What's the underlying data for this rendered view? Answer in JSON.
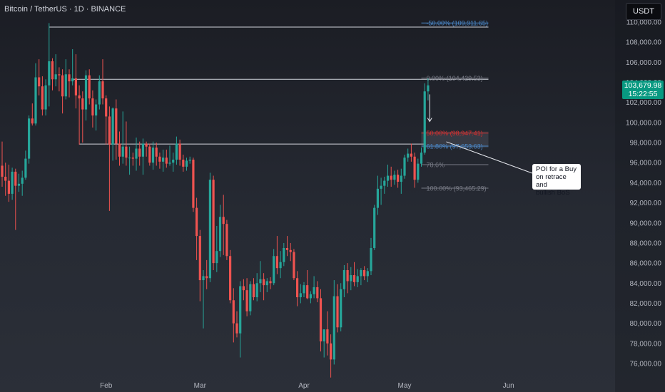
{
  "header": {
    "symbol": "Bitcoin / TetherUS · 1D · BINANCE",
    "currency": "USDT"
  },
  "last_price": {
    "value": "103,679.98",
    "countdown": "15:22:55"
  },
  "annotation": {
    "lines": [
      "POI for a Buy",
      "on retrace and",
      "bullish BoS"
    ]
  },
  "colors": {
    "bull": "#26a69a",
    "bear": "#ef5350",
    "fib_blue": "#4a87c8",
    "fib_red": "#d32f2f",
    "fib_grey": "#787b86",
    "level_line": "#d1d4dc",
    "price_tag_bg": "#089981"
  },
  "chart_data": {
    "type": "candlestick",
    "title": "Bitcoin / TetherUS · 1D · BINANCE",
    "y_axis": {
      "side": "right",
      "range": [
        74800,
        111300
      ],
      "ticks": [
        {
          "value": 110000,
          "label": "110,000.00"
        },
        {
          "value": 108000,
          "label": "108,000.00"
        },
        {
          "value": 106000,
          "label": "106,000.00"
        },
        {
          "value": 104000,
          "label": "104,000.00"
        },
        {
          "value": 102000,
          "label": "102,000.00"
        },
        {
          "value": 100000,
          "label": "100,000.00"
        },
        {
          "value": 98000,
          "label": "98,000.00"
        },
        {
          "value": 96000,
          "label": "96,000.00"
        },
        {
          "value": 94000,
          "label": "94,000.00"
        },
        {
          "value": 92000,
          "label": "92,000.00"
        },
        {
          "value": 90000,
          "label": "90,000.00"
        },
        {
          "value": 88000,
          "label": "88,000.00"
        },
        {
          "value": 86000,
          "label": "86,000.00"
        },
        {
          "value": 84000,
          "label": "84,000.00"
        },
        {
          "value": 82000,
          "label": "82,000.00"
        },
        {
          "value": 80000,
          "label": "80,000.00"
        },
        {
          "value": 78000,
          "label": "78,000.00"
        },
        {
          "value": 76000,
          "label": "76,000.00"
        }
      ]
    },
    "x_axis": {
      "labels": [
        {
          "label": "Feb",
          "day": 31
        },
        {
          "label": "Mar",
          "day": 59
        },
        {
          "label": "Apr",
          "day": 90
        },
        {
          "label": "May",
          "day": 120
        },
        {
          "label": "Jun",
          "day": 151
        }
      ]
    },
    "candles": [
      {
        "day": 0,
        "o": 95700,
        "h": 98100,
        "l": 93600,
        "c": 94600
      },
      {
        "day": 1,
        "o": 94600,
        "h": 96000,
        "l": 92700,
        "c": 94200
      },
      {
        "day": 2,
        "o": 94200,
        "h": 95800,
        "l": 92100,
        "c": 92900
      },
      {
        "day": 3,
        "o": 92900,
        "h": 95500,
        "l": 92300,
        "c": 95100
      },
      {
        "day": 4,
        "o": 95100,
        "h": 95400,
        "l": 89300,
        "c": 93700
      },
      {
        "day": 5,
        "o": 93700,
        "h": 94900,
        "l": 93100,
        "c": 93900
      },
      {
        "day": 6,
        "o": 93900,
        "h": 95200,
        "l": 92700,
        "c": 94500
      },
      {
        "day": 7,
        "o": 94500,
        "h": 97200,
        "l": 94300,
        "c": 96400
      },
      {
        "day": 8,
        "o": 96400,
        "h": 100700,
        "l": 95900,
        "c": 100400
      },
      {
        "day": 9,
        "o": 100400,
        "h": 101900,
        "l": 99700,
        "c": 99900
      },
      {
        "day": 10,
        "o": 99900,
        "h": 105900,
        "l": 99700,
        "c": 104500
      },
      {
        "day": 11,
        "o": 104500,
        "h": 106300,
        "l": 102700,
        "c": 103600
      },
      {
        "day": 12,
        "o": 103600,
        "h": 104600,
        "l": 100700,
        "c": 101300
      },
      {
        "day": 13,
        "o": 101300,
        "h": 104300,
        "l": 100700,
        "c": 103700
      },
      {
        "day": 14,
        "o": 103700,
        "h": 109900,
        "l": 101600,
        "c": 106100
      },
      {
        "day": 15,
        "o": 106100,
        "h": 106400,
        "l": 103200,
        "c": 104300
      },
      {
        "day": 16,
        "o": 104300,
        "h": 106800,
        "l": 103600,
        "c": 104800
      },
      {
        "day": 17,
        "o": 104800,
        "h": 105500,
        "l": 103100,
        "c": 104700
      },
      {
        "day": 18,
        "o": 104700,
        "h": 105300,
        "l": 100900,
        "c": 102600
      },
      {
        "day": 19,
        "o": 102600,
        "h": 106300,
        "l": 102300,
        "c": 104800
      },
      {
        "day": 20,
        "o": 104800,
        "h": 105300,
        "l": 102500,
        "c": 104100
      },
      {
        "day": 21,
        "o": 104100,
        "h": 107300,
        "l": 103700,
        "c": 104400
      },
      {
        "day": 22,
        "o": 104400,
        "h": 106800,
        "l": 101400,
        "c": 102700
      },
      {
        "day": 23,
        "o": 102700,
        "h": 103700,
        "l": 97800,
        "c": 102400
      },
      {
        "day": 24,
        "o": 102400,
        "h": 103100,
        "l": 98000,
        "c": 101300
      },
      {
        "day": 25,
        "o": 101300,
        "h": 105200,
        "l": 100200,
        "c": 104700
      },
      {
        "day": 26,
        "o": 104700,
        "h": 105300,
        "l": 101800,
        "c": 102400
      },
      {
        "day": 27,
        "o": 102400,
        "h": 103200,
        "l": 99500,
        "c": 100700
      },
      {
        "day": 28,
        "o": 100700,
        "h": 102300,
        "l": 99200,
        "c": 101800
      },
      {
        "day": 29,
        "o": 101800,
        "h": 104700,
        "l": 101300,
        "c": 104100
      },
      {
        "day": 30,
        "o": 104100,
        "h": 106300,
        "l": 101800,
        "c": 102400
      },
      {
        "day": 31,
        "o": 102400,
        "h": 102700,
        "l": 97800,
        "c": 100600
      },
      {
        "day": 32,
        "o": 100600,
        "h": 101600,
        "l": 91200,
        "c": 97800
      },
      {
        "day": 33,
        "o": 97800,
        "h": 101500,
        "l": 96200,
        "c": 101400
      },
      {
        "day": 34,
        "o": 101400,
        "h": 102300,
        "l": 96300,
        "c": 97900
      },
      {
        "day": 35,
        "o": 97900,
        "h": 99100,
        "l": 95700,
        "c": 96600
      },
      {
        "day": 36,
        "o": 96600,
        "h": 101100,
        "l": 95900,
        "c": 97600
      },
      {
        "day": 37,
        "o": 97600,
        "h": 100100,
        "l": 95700,
        "c": 96500
      },
      {
        "day": 38,
        "o": 96500,
        "h": 97600,
        "l": 94800,
        "c": 96500
      },
      {
        "day": 39,
        "o": 96500,
        "h": 97000,
        "l": 95700,
        "c": 96400
      },
      {
        "day": 40,
        "o": 96400,
        "h": 98500,
        "l": 95200,
        "c": 97400
      },
      {
        "day": 41,
        "o": 97400,
        "h": 98100,
        "l": 95700,
        "c": 96600
      },
      {
        "day": 42,
        "o": 96600,
        "h": 98400,
        "l": 94800,
        "c": 97900
      },
      {
        "day": 43,
        "o": 97900,
        "h": 98100,
        "l": 96600,
        "c": 97600
      },
      {
        "day": 44,
        "o": 97600,
        "h": 97900,
        "l": 95700,
        "c": 96000
      },
      {
        "day": 45,
        "o": 96000,
        "h": 98100,
        "l": 95300,
        "c": 97500
      },
      {
        "day": 46,
        "o": 97500,
        "h": 98000,
        "l": 95700,
        "c": 96600
      },
      {
        "day": 47,
        "o": 96600,
        "h": 97000,
        "l": 95400,
        "c": 96100
      },
      {
        "day": 48,
        "o": 96100,
        "h": 97300,
        "l": 95100,
        "c": 96500
      },
      {
        "day": 49,
        "o": 96500,
        "h": 97300,
        "l": 95500,
        "c": 95900
      },
      {
        "day": 50,
        "o": 95900,
        "h": 97700,
        "l": 95700,
        "c": 96000
      },
      {
        "day": 51,
        "o": 96000,
        "h": 97000,
        "l": 95100,
        "c": 96300
      },
      {
        "day": 52,
        "o": 96300,
        "h": 98600,
        "l": 95800,
        "c": 97900
      },
      {
        "day": 53,
        "o": 97900,
        "h": 98300,
        "l": 95700,
        "c": 96300
      },
      {
        "day": 54,
        "o": 96300,
        "h": 96800,
        "l": 95100,
        "c": 95600
      },
      {
        "day": 55,
        "o": 95600,
        "h": 96500,
        "l": 95200,
        "c": 96200
      },
      {
        "day": 56,
        "o": 96200,
        "h": 96600,
        "l": 95900,
        "c": 96300
      },
      {
        "day": 57,
        "o": 96300,
        "h": 96500,
        "l": 91100,
        "c": 91500
      },
      {
        "day": 58,
        "o": 91500,
        "h": 92500,
        "l": 86300,
        "c": 88700
      },
      {
        "day": 59,
        "o": 88700,
        "h": 89300,
        "l": 82200,
        "c": 84300
      },
      {
        "day": 60,
        "o": 84300,
        "h": 85300,
        "l": 79500,
        "c": 84700
      },
      {
        "day": 61,
        "o": 84700,
        "h": 86300,
        "l": 83400,
        "c": 84500
      },
      {
        "day": 62,
        "o": 84500,
        "h": 95000,
        "l": 84100,
        "c": 94300
      },
      {
        "day": 63,
        "o": 94300,
        "h": 94700,
        "l": 85300,
        "c": 86000
      },
      {
        "day": 64,
        "o": 86000,
        "h": 89700,
        "l": 85100,
        "c": 87200
      },
      {
        "day": 65,
        "o": 87200,
        "h": 91800,
        "l": 86600,
        "c": 90600
      },
      {
        "day": 66,
        "o": 90600,
        "h": 92800,
        "l": 86800,
        "c": 89900
      },
      {
        "day": 67,
        "o": 89900,
        "h": 90300,
        "l": 86300,
        "c": 86700
      },
      {
        "day": 68,
        "o": 86700,
        "h": 87300,
        "l": 82000,
        "c": 82300
      },
      {
        "day": 69,
        "o": 82300,
        "h": 83500,
        "l": 78100,
        "c": 80000
      },
      {
        "day": 70,
        "o": 80000,
        "h": 81200,
        "l": 78600,
        "c": 79000
      },
      {
        "day": 71,
        "o": 79000,
        "h": 84200,
        "l": 76600,
        "c": 83700
      },
      {
        "day": 72,
        "o": 83700,
        "h": 84400,
        "l": 82300,
        "c": 83300
      },
      {
        "day": 73,
        "o": 83300,
        "h": 84500,
        "l": 80700,
        "c": 81200
      },
      {
        "day": 74,
        "o": 81200,
        "h": 84200,
        "l": 80800,
        "c": 83900
      },
      {
        "day": 75,
        "o": 83900,
        "h": 84500,
        "l": 82300,
        "c": 82600
      },
      {
        "day": 76,
        "o": 82600,
        "h": 85000,
        "l": 82200,
        "c": 84000
      },
      {
        "day": 77,
        "o": 84000,
        "h": 86200,
        "l": 83100,
        "c": 84400
      },
      {
        "day": 78,
        "o": 84400,
        "h": 85000,
        "l": 82300,
        "c": 83800
      },
      {
        "day": 79,
        "o": 83800,
        "h": 84500,
        "l": 83100,
        "c": 84200
      },
      {
        "day": 80,
        "o": 84200,
        "h": 84600,
        "l": 83400,
        "c": 84000
      },
      {
        "day": 81,
        "o": 84000,
        "h": 87400,
        "l": 83800,
        "c": 86700
      },
      {
        "day": 82,
        "o": 86700,
        "h": 88700,
        "l": 84900,
        "c": 85500
      },
      {
        "day": 83,
        "o": 85500,
        "h": 87200,
        "l": 84500,
        "c": 86100
      },
      {
        "day": 84,
        "o": 86100,
        "h": 88000,
        "l": 85700,
        "c": 87500
      },
      {
        "day": 85,
        "o": 87500,
        "h": 88700,
        "l": 86700,
        "c": 87300
      },
      {
        "day": 86,
        "o": 87300,
        "h": 88000,
        "l": 86200,
        "c": 87100
      },
      {
        "day": 87,
        "o": 87100,
        "h": 87400,
        "l": 84300,
        "c": 84500
      },
      {
        "day": 88,
        "o": 84500,
        "h": 85200,
        "l": 81700,
        "c": 82600
      },
      {
        "day": 89,
        "o": 82600,
        "h": 83900,
        "l": 82000,
        "c": 83000
      },
      {
        "day": 90,
        "o": 83000,
        "h": 84100,
        "l": 82600,
        "c": 83800
      },
      {
        "day": 91,
        "o": 83800,
        "h": 85300,
        "l": 82400,
        "c": 82500
      },
      {
        "day": 92,
        "o": 82500,
        "h": 83200,
        "l": 82000,
        "c": 82900
      },
      {
        "day": 93,
        "o": 82900,
        "h": 84700,
        "l": 82500,
        "c": 83600
      },
      {
        "day": 94,
        "o": 83600,
        "h": 84200,
        "l": 82100,
        "c": 82500
      },
      {
        "day": 95,
        "o": 82500,
        "h": 83400,
        "l": 77200,
        "c": 78200
      },
      {
        "day": 96,
        "o": 78200,
        "h": 79300,
        "l": 76600,
        "c": 79400
      },
      {
        "day": 97,
        "o": 79400,
        "h": 81200,
        "l": 76800,
        "c": 78000
      },
      {
        "day": 98,
        "o": 78000,
        "h": 78900,
        "l": 74600,
        "c": 76400
      },
      {
        "day": 99,
        "o": 76400,
        "h": 84300,
        "l": 75900,
        "c": 82700
      },
      {
        "day": 100,
        "o": 82700,
        "h": 83900,
        "l": 79100,
        "c": 79600
      },
      {
        "day": 101,
        "o": 79600,
        "h": 84000,
        "l": 79200,
        "c": 83400
      },
      {
        "day": 102,
        "o": 83400,
        "h": 85800,
        "l": 82600,
        "c": 85300
      },
      {
        "day": 103,
        "o": 85300,
        "h": 86000,
        "l": 83000,
        "c": 84200
      },
      {
        "day": 104,
        "o": 84200,
        "h": 85600,
        "l": 83300,
        "c": 84800
      },
      {
        "day": 105,
        "o": 84800,
        "h": 86100,
        "l": 83700,
        "c": 84100
      },
      {
        "day": 106,
        "o": 84100,
        "h": 85400,
        "l": 83600,
        "c": 84700
      },
      {
        "day": 107,
        "o": 84700,
        "h": 85500,
        "l": 83800,
        "c": 85300
      },
      {
        "day": 108,
        "o": 85300,
        "h": 85700,
        "l": 84300,
        "c": 84700
      },
      {
        "day": 109,
        "o": 84700,
        "h": 85500,
        "l": 84100,
        "c": 85200
      },
      {
        "day": 110,
        "o": 85200,
        "h": 88500,
        "l": 84800,
        "c": 87500
      },
      {
        "day": 111,
        "o": 87500,
        "h": 91800,
        "l": 87300,
        "c": 91500
      },
      {
        "day": 112,
        "o": 91500,
        "h": 94700,
        "l": 90800,
        "c": 93400
      },
      {
        "day": 113,
        "o": 93400,
        "h": 94500,
        "l": 91800,
        "c": 93700
      },
      {
        "day": 114,
        "o": 93700,
        "h": 94600,
        "l": 92900,
        "c": 94200
      },
      {
        "day": 115,
        "o": 94200,
        "h": 95800,
        "l": 93600,
        "c": 94700
      },
      {
        "day": 116,
        "o": 94700,
        "h": 95600,
        "l": 93600,
        "c": 94300
      },
      {
        "day": 117,
        "o": 94300,
        "h": 95200,
        "l": 93800,
        "c": 94800
      },
      {
        "day": 118,
        "o": 94800,
        "h": 95300,
        "l": 93500,
        "c": 94100
      },
      {
        "day": 119,
        "o": 94100,
        "h": 95400,
        "l": 92900,
        "c": 94700
      },
      {
        "day": 120,
        "o": 94700,
        "h": 96800,
        "l": 94400,
        "c": 96500
      },
      {
        "day": 121,
        "o": 96500,
        "h": 97400,
        "l": 96100,
        "c": 96900
      },
      {
        "day": 122,
        "o": 96900,
        "h": 97900,
        "l": 96100,
        "c": 96600
      },
      {
        "day": 123,
        "o": 96600,
        "h": 97000,
        "l": 93500,
        "c": 94300
      },
      {
        "day": 124,
        "o": 94300,
        "h": 96400,
        "l": 94000,
        "c": 95900
      },
      {
        "day": 125,
        "o": 95900,
        "h": 97500,
        "l": 95600,
        "c": 97000
      },
      {
        "day": 126,
        "o": 97000,
        "h": 103900,
        "l": 96800,
        "c": 103100
      },
      {
        "day": 127,
        "o": 103100,
        "h": 104400,
        "l": 102200,
        "c": 103700
      }
    ],
    "horizontal_levels": [
      {
        "name": "range-high",
        "value": 109500,
        "from_day": 14,
        "to_day": 145
      },
      {
        "name": "breakout-high",
        "value": 104300,
        "from_day": 21,
        "to_day": 145
      },
      {
        "name": "range-low",
        "value": 97850,
        "from_day": 23,
        "to_day": 126
      }
    ],
    "fibonacci": {
      "from_day": 125,
      "to_day": 145,
      "label_day": 126.5,
      "levels": [
        {
          "ratio": "-50.00%",
          "price": "109,911.65",
          "value": 109911.65,
          "color": "blue"
        },
        {
          "ratio": "0.00%",
          "price": "104,429.53",
          "value": 104429.53,
          "color": "grey"
        },
        {
          "ratio": "50.00%",
          "price": "98,947.41",
          "value": 98947.41,
          "color": "red"
        },
        {
          "ratio": "61.80%",
          "price": "97,653.63",
          "value": 97653.63,
          "color": "blue"
        },
        {
          "ratio": "78.6%",
          "price": "",
          "value": 95800,
          "color": "grey"
        },
        {
          "ratio": "100.00%",
          "price": "93,465.29",
          "value": 93465.29,
          "color": "grey"
        }
      ]
    },
    "arrow": {
      "day": 127.5,
      "from": 102800,
      "to": 100100
    },
    "grid": false,
    "legend": "none"
  }
}
